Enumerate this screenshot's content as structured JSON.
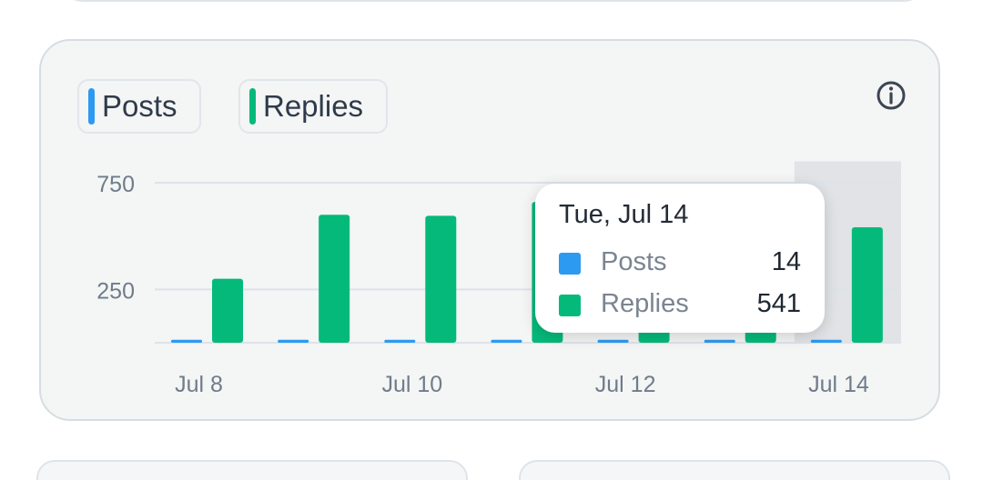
{
  "legend": {
    "posts": {
      "label": "Posts",
      "color": "#2d9af1"
    },
    "replies": {
      "label": "Replies",
      "color": "#05b97a"
    }
  },
  "info_icon": "info-circle-icon",
  "tooltip": {
    "title": "Tue, Jul 14",
    "rows": [
      {
        "label": "Posts",
        "value": "14",
        "color": "#2d9af1"
      },
      {
        "label": "Replies",
        "value": "541",
        "color": "#05b97a"
      }
    ]
  },
  "chart_data": {
    "type": "bar",
    "categories": [
      "Jul 8",
      "Jul 9",
      "Jul 10",
      "Jul 11",
      "Jul 12",
      "Jul 13",
      "Jul 14"
    ],
    "x_tick_labels": [
      "Jul 8",
      "Jul 10",
      "Jul 12",
      "Jul 14"
    ],
    "y_ticks": [
      250,
      750
    ],
    "y_tick_labels": [
      "250",
      "750"
    ],
    "ylim": [
      0,
      850
    ],
    "grid": true,
    "highlighted_category": "Jul 14",
    "series": [
      {
        "name": "Posts",
        "color": "#2d9af1",
        "values": [
          14,
          14,
          14,
          14,
          14,
          14,
          14
        ]
      },
      {
        "name": "Replies",
        "color": "#05b97a",
        "values": [
          300,
          600,
          595,
          660,
          570,
          610,
          541
        ]
      }
    ]
  }
}
